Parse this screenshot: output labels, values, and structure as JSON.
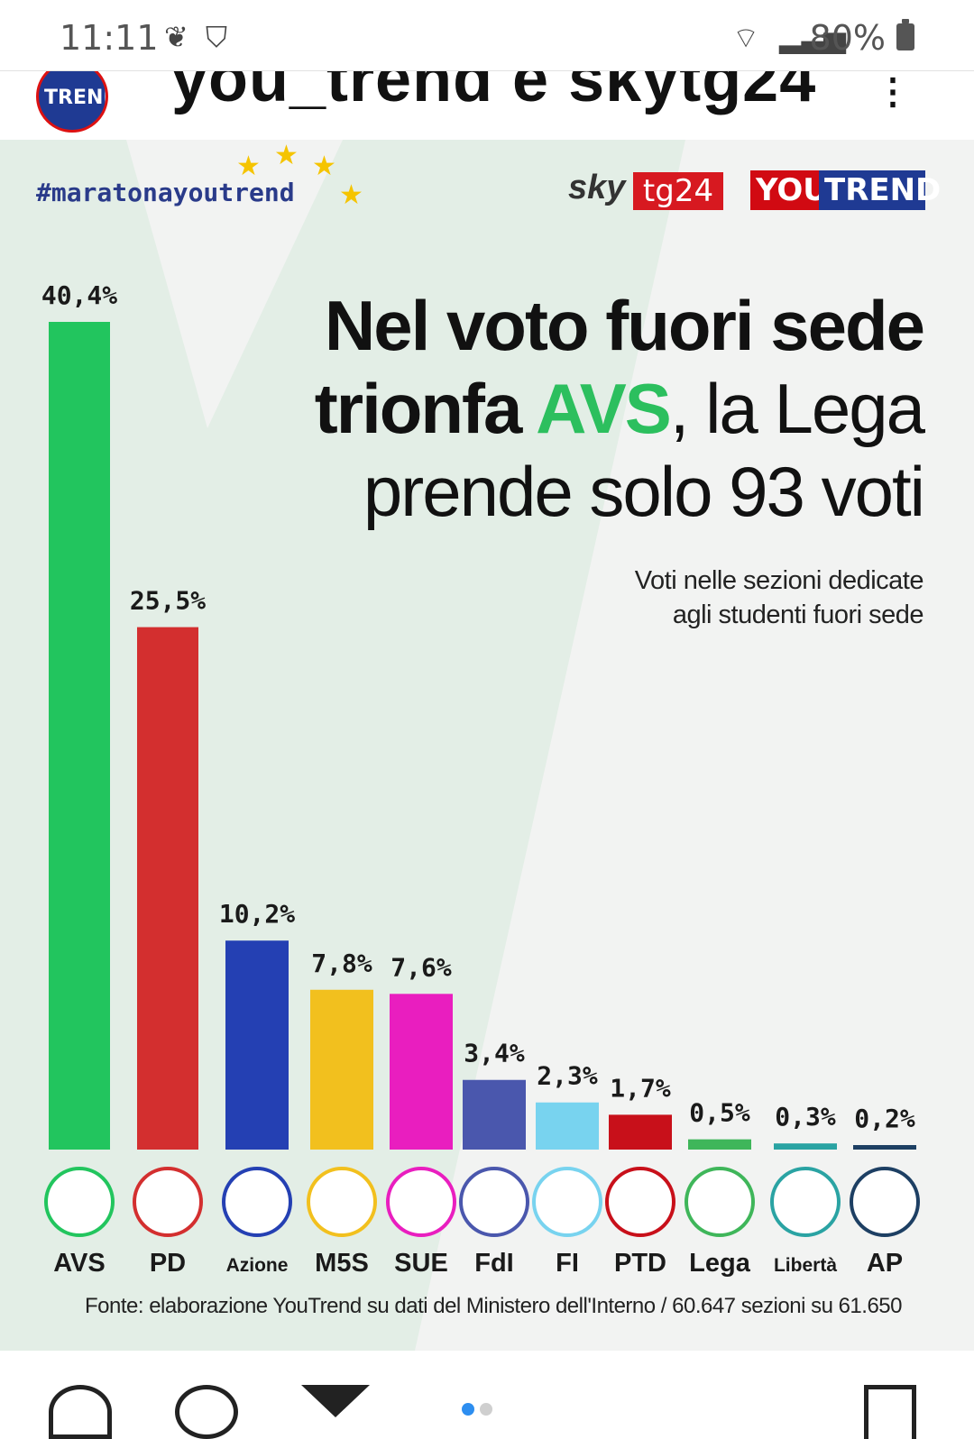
{
  "statusbar": {
    "time": "11:11",
    "battery": "80%"
  },
  "post": {
    "username": "you_trend e skytg24"
  },
  "card": {
    "hashtag": "#maratonayoutrend",
    "sky_word": "sky",
    "tg24": "tg24",
    "yt_you": "YOU",
    "yt_trend": "TREND",
    "title_line1": "Nel voto fuori sede",
    "title_line2_a": "trionfa ",
    "title_line2_hl": "AVS",
    "title_line2_b": ", la Lega",
    "title_line3": "prende solo 93 voti",
    "subtitle_line1": "Voti nelle sezioni dedicate",
    "subtitle_line2": "agli studenti fuori sede",
    "source": "Fonte: elaborazione YouTrend su dati del Ministero dell'Interno / 60.647 sezioni su 61.650",
    "colors": {
      "accent_green": "#2cbf5e",
      "brand_red": "#d10a12",
      "brand_blue": "#1f3a93"
    }
  },
  "chart_data": {
    "type": "bar",
    "categories": [
      "AVS",
      "PD",
      "Azione",
      "M5S",
      "SUE",
      "FdI",
      "FI",
      "PTD",
      "Lega",
      "Libertà",
      "AP"
    ],
    "values": [
      40.4,
      25.5,
      10.2,
      7.8,
      7.6,
      3.4,
      2.3,
      1.7,
      0.5,
      0.3,
      0.2
    ],
    "value_labels": [
      "40,4%",
      "25,5%",
      "10,2%",
      "7,8%",
      "7,6%",
      "3,4%",
      "2,3%",
      "1,7%",
      "0,5%",
      "0,3%",
      "0,2%"
    ],
    "colors": [
      "#22c55e",
      "#d32f2f",
      "#2440b3",
      "#f2c01e",
      "#e91ebf",
      "#4a57ad",
      "#78d3ef",
      "#c8101a",
      "#3fb65a",
      "#2aa3a3",
      "#1d3f63"
    ],
    "unit": "%",
    "ylim": [
      0,
      40.4
    ],
    "grid": false,
    "legend": "none"
  }
}
